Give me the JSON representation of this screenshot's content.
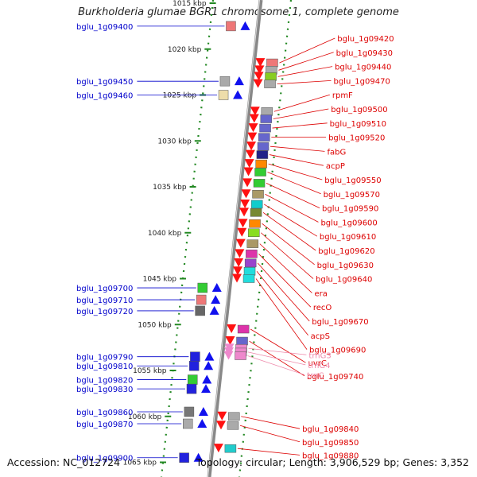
{
  "title": "Burkholderia glumae BGR1 chromosome 1, complete genome",
  "footer": {
    "accession": "Accession: NC_012724",
    "summary": "Topology: circular; Length: 3,906,529 bp; Genes: 3,352"
  },
  "colors": {
    "minus_label": "#0000cc",
    "plus_label": "#dd0000",
    "rna_label": "#ee88aa",
    "backbone": "#888888",
    "tick": "#228822"
  },
  "scale": {
    "kbp_start": 1015,
    "kbp_end": 1065,
    "step": 5,
    "unit": "kbp"
  },
  "left_genes": [
    {
      "label": "bglu_1g09400",
      "kbp": 1017.5,
      "color": "#ee7777"
    },
    {
      "label": "bglu_1g09450",
      "kbp": 1023.5,
      "color": "#aaaaaa"
    },
    {
      "label": "bglu_1g09460",
      "kbp": 1025.0,
      "color": "#eeddaa"
    },
    {
      "label": "bglu_1g09700",
      "kbp": 1046.0,
      "color": "#33cc33"
    },
    {
      "label": "bglu_1g09710",
      "kbp": 1047.3,
      "color": "#ee7777"
    },
    {
      "label": "bglu_1g09720",
      "kbp": 1048.5,
      "color": "#666666"
    },
    {
      "label": "bglu_1g09790",
      "kbp": 1053.5,
      "color": "#2222dd"
    },
    {
      "label": "bglu_1g09810",
      "kbp": 1054.5,
      "color": "#2222dd"
    },
    {
      "label": "bglu_1g09820",
      "kbp": 1056.0,
      "color": "#33cc33"
    },
    {
      "label": "bglu_1g09830",
      "kbp": 1057.0,
      "color": "#2222dd"
    },
    {
      "label": "bglu_1g09860",
      "kbp": 1059.5,
      "color": "#777777"
    },
    {
      "label": "bglu_1g09870",
      "kbp": 1060.8,
      "color": "#aaaaaa"
    },
    {
      "label": "bglu_1g09900",
      "kbp": 1064.5,
      "color": "#2222dd"
    }
  ],
  "right_genes": [
    {
      "label": "bglu_1g09420",
      "kbp": 1021.5,
      "color": "#ee7777",
      "kind": "cds"
    },
    {
      "label": "bglu_1g09430",
      "kbp": 1022.3,
      "color": "#aaaaaa",
      "kind": "cds"
    },
    {
      "label": "bglu_1g09440",
      "kbp": 1023.0,
      "color": "#88cc22",
      "kind": "cds"
    },
    {
      "label": "bglu_1g09470",
      "kbp": 1023.8,
      "color": "#aaaaaa",
      "kind": "cds"
    },
    {
      "label": "rpmF",
      "kbp": 1026.8,
      "color": "#aaaaaa",
      "kind": "cds"
    },
    {
      "label": "bglu_1g09500",
      "kbp": 1027.6,
      "color": "#6666cc",
      "kind": "cds"
    },
    {
      "label": "bglu_1g09510",
      "kbp": 1028.6,
      "color": "#6666cc",
      "kind": "cds"
    },
    {
      "label": "bglu_1g09520",
      "kbp": 1029.6,
      "color": "#6666cc",
      "kind": "cds"
    },
    {
      "label": "fabG",
      "kbp": 1030.6,
      "color": "#6666cc",
      "kind": "cds"
    },
    {
      "label": "acpP",
      "kbp": 1031.5,
      "color": "#222288",
      "kind": "cds"
    },
    {
      "label": "bglu_1g09550",
      "kbp": 1032.5,
      "color": "#ff8800",
      "kind": "cds"
    },
    {
      "label": "bglu_1g09570",
      "kbp": 1033.4,
      "color": "#33cc33",
      "kind": "cds"
    },
    {
      "label": "bglu_1g09590",
      "kbp": 1034.6,
      "color": "#33cc33",
      "kind": "cds"
    },
    {
      "label": "bglu_1g09600",
      "kbp": 1035.8,
      "color": "#aa9966",
      "kind": "cds"
    },
    {
      "label": "bglu_1g09610",
      "kbp": 1036.9,
      "color": "#11cccc",
      "kind": "cds"
    },
    {
      "label": "bglu_1g09620",
      "kbp": 1037.8,
      "color": "#778833",
      "kind": "cds"
    },
    {
      "label": "bglu_1g09630",
      "kbp": 1039.0,
      "color": "#ff8800",
      "kind": "cds"
    },
    {
      "label": "bglu_1g09640",
      "kbp": 1040.0,
      "color": "#88dd22",
      "kind": "cds"
    },
    {
      "label": "era",
      "kbp": 1041.2,
      "color": "#aa9966",
      "kind": "cds"
    },
    {
      "label": "recO",
      "kbp": 1042.3,
      "color": "#dd33aa",
      "kind": "cds"
    },
    {
      "label": "bglu_1g09670",
      "kbp": 1043.3,
      "color": "#9944cc",
      "kind": "cds"
    },
    {
      "label": "acpS",
      "kbp": 1044.2,
      "color": "#22dddd",
      "kind": "cds"
    },
    {
      "label": "bglu_1g09690",
      "kbp": 1045.0,
      "color": "#22dddd",
      "kind": "cds"
    },
    {
      "label": "uvrC",
      "kbp": 1050.5,
      "color": "#dd33aa",
      "kind": "cds"
    },
    {
      "label": "bglu_1g09740",
      "kbp": 1051.8,
      "color": "#6666cc",
      "kind": "cds"
    },
    {
      "label": "trnG3",
      "kbp": 1052.6,
      "color": "#ee88cc",
      "kind": "rna"
    },
    {
      "label": "trnG4",
      "kbp": 1053.0,
      "color": "#ee88cc",
      "kind": "rna"
    },
    {
      "label": "trnC",
      "kbp": 1053.4,
      "color": "#ee88cc",
      "kind": "rna"
    },
    {
      "label": "bglu_1g09840",
      "kbp": 1060.0,
      "color": "#aaaaaa",
      "kind": "cds"
    },
    {
      "label": "bglu_1g09850",
      "kbp": 1061.0,
      "color": "#aaaaaa",
      "kind": "cds"
    },
    {
      "label": "bglu_1g09880",
      "kbp": 1063.5,
      "color": "#22cccc",
      "kind": "cds"
    }
  ]
}
